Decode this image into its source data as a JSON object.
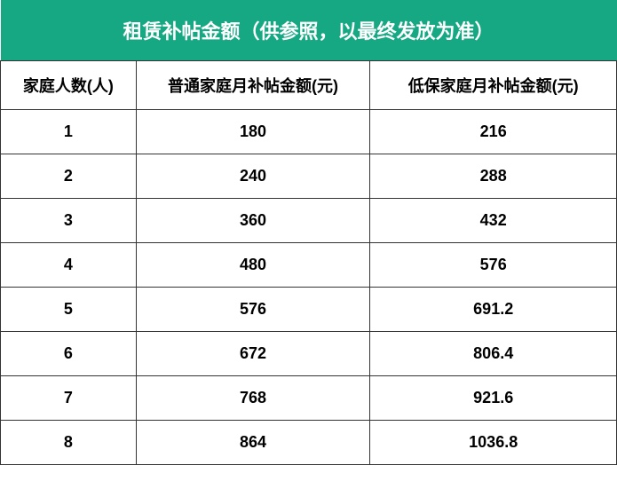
{
  "table": {
    "title": "租赁补帖金额（供参照，以最终发放为准）",
    "title_bg_color": "#16a883",
    "title_text_color": "#ffffff",
    "title_fontsize": "22px",
    "header_fontsize": "18px",
    "cell_fontsize": "18px",
    "text_color": "#000000",
    "border_color": "#333333",
    "columns": [
      "家庭人数(人)",
      "普通家庭月补帖金额(元)",
      "低保家庭月补帖金额(元)"
    ],
    "rows": [
      {
        "size": "1",
        "normal": "180",
        "low": "216"
      },
      {
        "size": "2",
        "normal": "240",
        "low": "288"
      },
      {
        "size": "3",
        "normal": "360",
        "low": "432"
      },
      {
        "size": "4",
        "normal": "480",
        "low": "576"
      },
      {
        "size": "5",
        "normal": "576",
        "low": "691.2"
      },
      {
        "size": "6",
        "normal": "672",
        "low": "806.4"
      },
      {
        "size": "7",
        "normal": "768",
        "low": "921.6"
      },
      {
        "size": "8",
        "normal": "864",
        "low": "1036.8"
      }
    ]
  }
}
